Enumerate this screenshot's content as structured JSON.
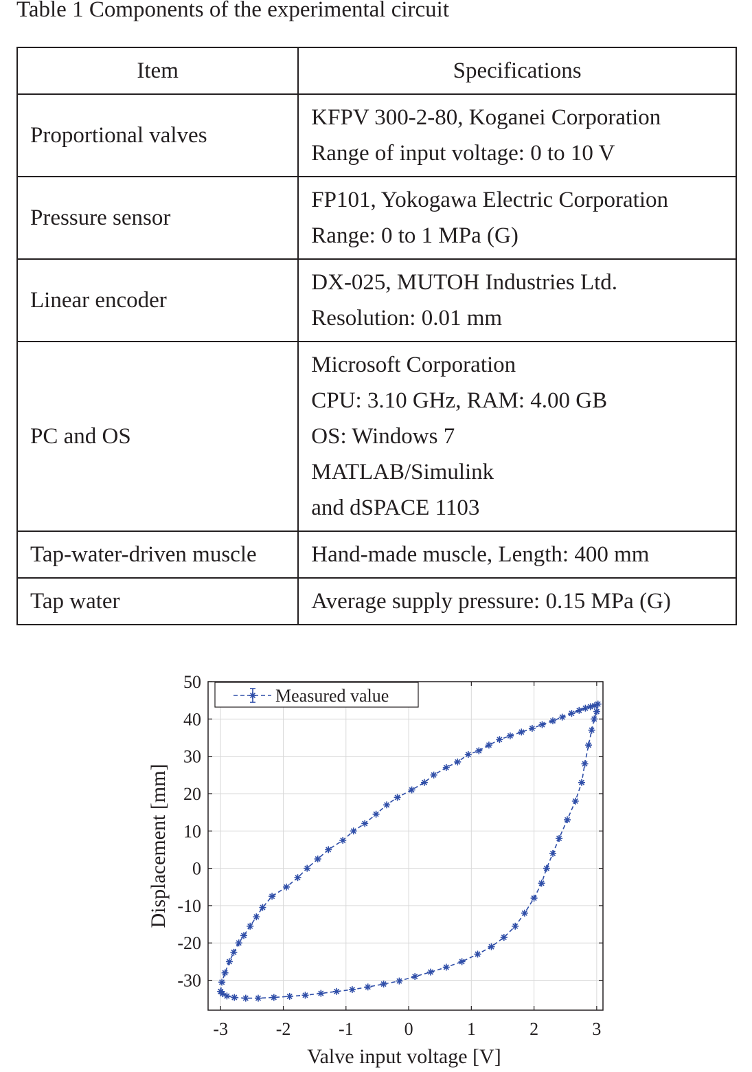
{
  "table": {
    "caption": "Table 1 Components of the experimental circuit",
    "headers": [
      "Item",
      "Specifications"
    ],
    "rows": [
      {
        "item": "Proportional valves",
        "specs": [
          "KFPV 300-2-80, Koganei Corporation",
          "Range of input voltage: 0 to 10 V"
        ]
      },
      {
        "item": "Pressure sensor",
        "specs": [
          "FP101, Yokogawa Electric Corporation",
          "Range: 0 to 1 MPa (G)"
        ]
      },
      {
        "item": "Linear encoder",
        "specs": [
          "DX-025, MUTOH Industries Ltd.",
          "Resolution: 0.01 mm"
        ]
      },
      {
        "item": "PC and OS",
        "specs": [
          "Microsoft Corporation",
          "CPU: 3.10 GHz, RAM: 4.00 GB",
          "OS: Windows 7",
          "MATLAB/Simulink",
          "and dSPACE 1103"
        ]
      },
      {
        "item": "Tap-water-driven muscle",
        "specs": [
          "Hand-made muscle, Length: 400 mm"
        ]
      },
      {
        "item": "Tap water",
        "specs": [
          "Average supply pressure: 0.15 MPa (G)"
        ]
      }
    ]
  },
  "chart_data": {
    "type": "scatter",
    "title": "",
    "xlabel": "Valve input voltage [V]",
    "ylabel": "Displacement [mm]",
    "xlim": [
      -3.2,
      3.1
    ],
    "ylim": [
      -38,
      50
    ],
    "xticks": [
      -3,
      -2,
      -1,
      0,
      1,
      2,
      3
    ],
    "xtick_labels": [
      "-3",
      "-2",
      "-1",
      "0",
      "1",
      "2",
      "3"
    ],
    "yticks": [
      -30,
      -20,
      -10,
      0,
      10,
      20,
      30,
      40,
      50
    ],
    "ytick_labels": [
      "-30",
      "-20",
      "-10",
      "0",
      "10",
      "20",
      "30",
      "40",
      "50"
    ],
    "grid": true,
    "legend_position": "top-left",
    "series": [
      {
        "name": "Measured value",
        "color": "#2f4ea8",
        "marker": "asterisk",
        "line_style": "dashed",
        "points": [
          [
            -3.0,
            -33.0
          ],
          [
            -2.98,
            -30.5
          ],
          [
            -2.93,
            -28.0
          ],
          [
            -2.86,
            -25.0
          ],
          [
            -2.79,
            -22.5
          ],
          [
            -2.71,
            -20.0
          ],
          [
            -2.63,
            -18.0
          ],
          [
            -2.53,
            -15.5
          ],
          [
            -2.43,
            -13.0
          ],
          [
            -2.33,
            -10.5
          ],
          [
            -2.18,
            -7.5
          ],
          [
            -1.95,
            -5.0
          ],
          [
            -1.77,
            -2.5
          ],
          [
            -1.62,
            0.0
          ],
          [
            -1.45,
            2.5
          ],
          [
            -1.28,
            5.0
          ],
          [
            -1.05,
            7.5
          ],
          [
            -0.88,
            10.0
          ],
          [
            -0.7,
            12.0
          ],
          [
            -0.52,
            14.5
          ],
          [
            -0.35,
            17.0
          ],
          [
            -0.18,
            19.0
          ],
          [
            0.05,
            21.0
          ],
          [
            0.25,
            23.0
          ],
          [
            0.4,
            25.0
          ],
          [
            0.6,
            27.0
          ],
          [
            0.78,
            28.5
          ],
          [
            0.95,
            30.5
          ],
          [
            1.12,
            31.5
          ],
          [
            1.28,
            33.0
          ],
          [
            1.45,
            34.5
          ],
          [
            1.62,
            35.5
          ],
          [
            1.8,
            36.5
          ],
          [
            1.97,
            37.5
          ],
          [
            2.13,
            38.5
          ],
          [
            2.3,
            39.5
          ],
          [
            2.45,
            40.5
          ],
          [
            2.6,
            41.5
          ],
          [
            2.72,
            42.3
          ],
          [
            2.82,
            42.9
          ],
          [
            2.9,
            43.3
          ],
          [
            2.97,
            43.6
          ],
          [
            3.02,
            44.0
          ],
          [
            3.0,
            42.0
          ],
          [
            2.96,
            40.0
          ],
          [
            2.92,
            37.0
          ],
          [
            2.87,
            33.0
          ],
          [
            2.81,
            28.0
          ],
          [
            2.76,
            23.0
          ],
          [
            2.66,
            18.0
          ],
          [
            2.53,
            13.0
          ],
          [
            2.4,
            8.0
          ],
          [
            2.3,
            4.0
          ],
          [
            2.2,
            0.0
          ],
          [
            2.12,
            -4.0
          ],
          [
            2.0,
            -8.0
          ],
          [
            1.85,
            -12.0
          ],
          [
            1.7,
            -15.5
          ],
          [
            1.52,
            -18.5
          ],
          [
            1.32,
            -21.0
          ],
          [
            1.1,
            -23.0
          ],
          [
            0.85,
            -25.0
          ],
          [
            0.6,
            -26.5
          ],
          [
            0.35,
            -27.8
          ],
          [
            0.1,
            -29.0
          ],
          [
            -0.15,
            -30.2
          ],
          [
            -0.4,
            -31.0
          ],
          [
            -0.65,
            -31.8
          ],
          [
            -0.9,
            -32.5
          ],
          [
            -1.15,
            -33.0
          ],
          [
            -1.4,
            -33.5
          ],
          [
            -1.65,
            -34.0
          ],
          [
            -1.9,
            -34.3
          ],
          [
            -2.15,
            -34.6
          ],
          [
            -2.4,
            -34.8
          ],
          [
            -2.6,
            -34.8
          ],
          [
            -2.78,
            -34.6
          ],
          [
            -2.9,
            -34.2
          ],
          [
            -2.97,
            -33.6
          ],
          [
            -3.0,
            -33.0
          ]
        ]
      }
    ]
  }
}
